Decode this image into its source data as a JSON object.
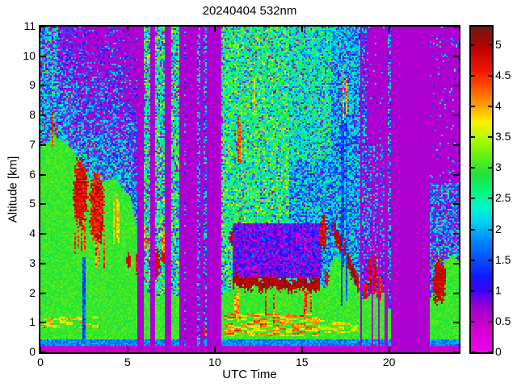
{
  "chart_data": {
    "type": "heatmap",
    "title": "20240404 532nm",
    "xlabel": "UTC Time",
    "ylabel": "Altitude [km]",
    "x_range": [
      0,
      24
    ],
    "y_range": [
      0,
      11
    ],
    "x_ticks": [
      0,
      5,
      10,
      15,
      20
    ],
    "y_ticks": [
      0,
      1,
      2,
      3,
      4,
      5,
      6,
      7,
      8,
      9,
      10,
      11
    ],
    "colorbar": {
      "min": 0,
      "max": 5.3,
      "ticks": [
        0,
        0.5,
        1,
        1.5,
        2,
        2.5,
        3,
        3.5,
        4,
        4.5,
        5
      ]
    },
    "colormap_stops": [
      [
        0.0,
        [
          240,
          0,
          240
        ]
      ],
      [
        0.45,
        [
          205,
          0,
          205
        ]
      ],
      [
        0.75,
        [
          150,
          0,
          210
        ]
      ],
      [
        1.0,
        [
          60,
          0,
          250
        ]
      ],
      [
        1.25,
        [
          15,
          30,
          255
        ]
      ],
      [
        1.8,
        [
          0,
          130,
          255
        ]
      ],
      [
        2.1,
        [
          0,
          205,
          245
        ]
      ],
      [
        2.35,
        [
          0,
          245,
          205
        ]
      ],
      [
        2.6,
        [
          0,
          250,
          130
        ]
      ],
      [
        2.9,
        [
          35,
          225,
          55
        ]
      ],
      [
        3.2,
        [
          100,
          240,
          20
        ]
      ],
      [
        3.5,
        [
          185,
          250,
          0
        ]
      ],
      [
        3.75,
        [
          250,
          240,
          0
        ]
      ],
      [
        4.0,
        [
          255,
          165,
          0
        ]
      ],
      [
        4.3,
        [
          255,
          85,
          0
        ]
      ],
      [
        4.6,
        [
          238,
          20,
          0
        ]
      ],
      [
        4.95,
        [
          190,
          0,
          0
        ]
      ],
      [
        5.3,
        [
          105,
          25,
          20
        ]
      ]
    ],
    "no_data_value": 0.62,
    "green_value": 3.0,
    "grid_cells": {
      "cols": 259,
      "rows": 202
    },
    "surface_bands": [
      {
        "top": 0.24,
        "v": 0.5,
        "jit": 0.15
      },
      {
        "top": 0.46,
        "v": 1.8,
        "jit": 0.55
      }
    ],
    "aerosol_top_km": [
      [
        0,
        6.9
      ],
      [
        0.8,
        7.3
      ],
      [
        1.6,
        7.0
      ],
      [
        2.3,
        6.5
      ],
      [
        3.1,
        5.6
      ],
      [
        4.2,
        5.9
      ],
      [
        5.1,
        5.3
      ],
      [
        5.5,
        4.4
      ],
      [
        5.9,
        2.1
      ],
      [
        6.6,
        1.9
      ],
      [
        10.5,
        1.9
      ],
      [
        11.0,
        2.15
      ],
      [
        16.4,
        2.2
      ],
      [
        16.8,
        3.3
      ],
      [
        17.5,
        3.0
      ],
      [
        18.3,
        2.0
      ],
      [
        18.6,
        1.8
      ],
      [
        19.2,
        2.05
      ],
      [
        19.7,
        2.0
      ],
      [
        20.0,
        1.5
      ],
      [
        22.35,
        1.8
      ],
      [
        23.2,
        3.1
      ],
      [
        23.7,
        3.3
      ],
      [
        24,
        3.05
      ]
    ],
    "noise_zones": [
      {
        "t": [
          0,
          1.05
        ],
        "a": [
          5.5,
          11
        ],
        "p": 0.8,
        "m": 2.05,
        "s": 0.75
      },
      {
        "t": [
          0,
          5.55
        ],
        "fade": true,
        "p": 0.85,
        "pk": 0.13,
        "pmin": 0.15,
        "m": 2.05,
        "mk": 0.13,
        "mmin": 1.2,
        "s": 0.7
      },
      {
        "t": [
          5.55,
          10.45
        ],
        "p": 0.85,
        "m": 2.55,
        "s": 0.95
      },
      {
        "t": [
          10.45,
          14.3
        ],
        "p": 0.96,
        "m": 2.65,
        "s": 0.9
      },
      {
        "t": [
          14.3,
          16.65
        ],
        "a": [
          0,
          6.5
        ],
        "p": 0.95,
        "m": 2.0,
        "s": 0.8
      },
      {
        "t": [
          14.3,
          16.65
        ],
        "a": [
          6.5,
          11
        ],
        "p": 0.95,
        "m": 2.4,
        "s": 0.8
      },
      {
        "t": [
          16.65,
          18.35
        ],
        "p": 0.92,
        "m": 1.95,
        "s": 0.75
      },
      {
        "t": [
          18.35,
          19.75
        ],
        "a": [
          0,
          7
        ],
        "p": 0.45,
        "m": 1.8,
        "s": 0.7
      },
      {
        "t": [
          22.35,
          24
        ],
        "a": [
          0,
          5.7
        ],
        "p": 0.65,
        "m": 1.9,
        "s": 0.7
      },
      {
        "t": [
          18.35,
          24
        ],
        "p": 0.06,
        "m": 1.8,
        "s": 0.8
      }
    ],
    "features": [
      {
        "type": "wisps",
        "t": [
          0.2,
          3.4
        ],
        "a": [
          0.8,
          1.2
        ],
        "v": 3.45,
        "th": 0.5,
        "seed": 11
      },
      {
        "type": "wisps",
        "t": [
          10.6,
          16.0
        ],
        "a": [
          0.55,
          1.3
        ],
        "v": 3.5,
        "th": 0.38,
        "seed": 12
      },
      {
        "type": "wisps",
        "t": [
          16.0,
          18.3
        ],
        "a": [
          0.6,
          1.1
        ],
        "v": 3.3,
        "th": 0.58,
        "seed": 13
      },
      {
        "type": "vstreaks",
        "t": [
          0.55,
          1.0
        ],
        "a": [
          6.9,
          8.3
        ],
        "v": 4.5,
        "p": 0.5,
        "jit": 0.8,
        "seed": 21
      },
      {
        "type": "blob",
        "t": [
          1.85,
          2.75
        ],
        "a": [
          4.1,
          6.7
        ],
        "v": 4.75,
        "jit": 0.7,
        "seed": 22
      },
      {
        "type": "vstreaks",
        "t": [
          1.9,
          2.7
        ],
        "a": [
          3.2,
          4.5
        ],
        "v": 4.4,
        "p": 0.4,
        "jit": 0.9,
        "seed": 23
      },
      {
        "type": "blob",
        "t": [
          2.8,
          3.7
        ],
        "a": [
          3.5,
          6.2
        ],
        "v": 4.7,
        "jit": 0.8,
        "seed": 24
      },
      {
        "type": "vstreaks",
        "t": [
          2.85,
          3.8
        ],
        "a": [
          2.6,
          4.0
        ],
        "v": 4.3,
        "p": 0.35,
        "jit": 1.0,
        "seed": 25
      },
      {
        "type": "vstreaks",
        "t": [
          4.15,
          4.55
        ],
        "a": [
          3.4,
          5.6
        ],
        "v": 3.8,
        "p": 0.5,
        "jit": 0.7,
        "seed": 26
      },
      {
        "type": "solid",
        "t": [
          2.38,
          2.6
        ],
        "a": [
          0.46,
          3.2
        ],
        "v": 1.5,
        "jit": 0.8,
        "seed": 27
      },
      {
        "type": "blob",
        "t": [
          4.9,
          5.2
        ],
        "a": [
          2.8,
          3.4
        ],
        "v": 4.8,
        "jit": 0.5,
        "seed": 31
      },
      {
        "type": "blob",
        "t": [
          5.45,
          5.75
        ],
        "a": [
          2.5,
          3.5
        ],
        "v": 4.6,
        "jit": 0.6,
        "seed": 32
      },
      {
        "type": "blob",
        "t": [
          6.55,
          6.85
        ],
        "a": [
          2.5,
          3.6
        ],
        "v": 4.8,
        "jit": 0.5,
        "seed": 33
      },
      {
        "type": "blob",
        "t": [
          6.95,
          7.15
        ],
        "a": [
          2.9,
          3.6
        ],
        "v": 4.7,
        "jit": 0.5,
        "seed": 34
      },
      {
        "type": "vstreaks",
        "t": [
          5.95,
          7.12
        ],
        "a": [
          3.3,
          4.3
        ],
        "v": 4.2,
        "p": 0.3,
        "jit": 0.9,
        "seed": 35
      },
      {
        "type": "gap",
        "t": [
          5.55,
          5.95
        ]
      },
      {
        "type": "gap",
        "t": [
          6.3,
          6.55
        ]
      },
      {
        "type": "gap",
        "t": [
          7.15,
          7.5
        ]
      },
      {
        "type": "gap",
        "t": [
          7.95,
          8.45
        ]
      },
      {
        "type": "gap",
        "t": [
          8.45,
          10.42
        ]
      },
      {
        "type": "datacol",
        "t": [
          8.22,
          8.32
        ],
        "p": 0.3,
        "m": 1.7,
        "s": 0.7,
        "green": 0,
        "seed": 41
      },
      {
        "type": "datacol",
        "t": [
          9.0,
          9.15
        ],
        "p": 0.55,
        "m": 1.85,
        "s": 0.7,
        "green": 0.3,
        "seed": 42
      },
      {
        "type": "datacol",
        "t": [
          9.35,
          9.5
        ],
        "p": 0.5,
        "m": 1.9,
        "s": 0.7,
        "green": 0.35,
        "seed": 43
      },
      {
        "type": "blob",
        "t": [
          9.38,
          9.48
        ],
        "a": [
          0.45,
          0.95
        ],
        "v": 4.6,
        "jit": 0.5,
        "seed": 44
      },
      {
        "type": "vstreaks",
        "t": [
          11.3,
          11.6
        ],
        "a": [
          6.3,
          8.1
        ],
        "v": 4.3,
        "p": 0.55,
        "jit": 0.7,
        "seed": 51
      },
      {
        "type": "vstreaks",
        "t": [
          11.7,
          12.05
        ],
        "a": [
          6.6,
          9.7
        ],
        "v": 4.2,
        "p": 0.5,
        "jit": 0.8,
        "seed": 52
      },
      {
        "type": "vstreaks",
        "t": [
          12.05,
          12.3
        ],
        "a": [
          7.6,
          9.9
        ],
        "v": 3.8,
        "p": 0.4,
        "jit": 0.8,
        "seed": 53
      },
      {
        "type": "blob",
        "t": [
          10.85,
          11.2
        ],
        "a": [
          3.55,
          4.2
        ],
        "v": 4.9,
        "jit": 0.4,
        "seed": 54
      },
      {
        "type": "speckle",
        "t": [
          11.0,
          16.1
        ],
        "a": [
          2.5,
          4.35
        ],
        "p": 0.8,
        "m": 0.95,
        "s": 0.6,
        "seed": 55
      },
      {
        "type": "layer",
        "pts": [
          [
            11.0,
            2.4
          ],
          [
            12.5,
            2.33
          ],
          [
            14.0,
            2.25
          ],
          [
            16.05,
            2.3
          ]
        ],
        "h": 0.2,
        "v": 5.0,
        "jit": 0.45,
        "seed": 56
      },
      {
        "type": "vstreaks",
        "t": [
          11.1,
          11.5
        ],
        "a": [
          0.9,
          2.2
        ],
        "v": 4.0,
        "p": 0.5,
        "jit": 0.8,
        "seed": 57
      },
      {
        "type": "vstreaks",
        "t": [
          12.2,
          12.35
        ],
        "a": [
          1.0,
          2.3
        ],
        "v": 4.5,
        "p": 0.7,
        "jit": 1.1,
        "seed": 58
      },
      {
        "type": "vstreaks",
        "t": [
          12.8,
          12.95
        ],
        "a": [
          1.2,
          2.3
        ],
        "v": 4.5,
        "p": 0.7,
        "jit": 1.1,
        "seed": 59
      },
      {
        "type": "vstreaks",
        "t": [
          13.35,
          13.5
        ],
        "a": [
          0.8,
          2.25
        ],
        "v": 4.4,
        "p": 0.7,
        "jit": 1.2,
        "seed": 60
      },
      {
        "type": "vstreaks",
        "t": [
          14.5,
          14.72
        ],
        "a": [
          0.6,
          2.2
        ],
        "v": 4.6,
        "p": 0.75,
        "jit": 1.1,
        "seed": 61
      },
      {
        "type": "vstreaks",
        "t": [
          15.1,
          15.25
        ],
        "a": [
          1.1,
          2.2
        ],
        "v": 4.5,
        "p": 0.7,
        "jit": 1.1,
        "seed": 62
      },
      {
        "type": "vstreaks",
        "t": [
          15.45,
          15.6
        ],
        "a": [
          1.3,
          2.2
        ],
        "v": 4.4,
        "p": 0.7,
        "jit": 1.1,
        "seed": 63
      },
      {
        "type": "blob",
        "t": [
          16.05,
          16.45
        ],
        "a": [
          3.4,
          4.7
        ],
        "v": 4.8,
        "jit": 0.6,
        "seed": 64
      },
      {
        "type": "blob",
        "t": [
          16.3,
          16.55
        ],
        "a": [
          2.2,
          2.8
        ],
        "v": 4.7,
        "jit": 0.6,
        "seed": 65
      },
      {
        "type": "layer",
        "pts": [
          [
            16.75,
            4.25
          ],
          [
            17.3,
            3.7
          ],
          [
            17.8,
            2.9
          ],
          [
            18.3,
            2.2
          ]
        ],
        "h": 0.28,
        "v": 4.9,
        "jit": 0.5,
        "seed": 66
      },
      {
        "type": "vstreaks",
        "t": [
          17.28,
          17.42
        ],
        "a": [
          0.46,
          11
        ],
        "v": 1.5,
        "p": 0.85,
        "jit": 0.8,
        "seed": 67
      },
      {
        "type": "vstreaks",
        "t": [
          17.52,
          17.62
        ],
        "a": [
          0.46,
          11
        ],
        "v": 1.6,
        "p": 0.75,
        "jit": 0.8,
        "seed": 68
      },
      {
        "type": "vstreaks",
        "t": [
          17.35,
          17.62
        ],
        "a": [
          7.6,
          9.6
        ],
        "v": 4.1,
        "p": 0.5,
        "jit": 0.7,
        "seed": 69
      },
      {
        "type": "gap",
        "t": [
          18.32,
          18.45
        ]
      },
      {
        "type": "datacol",
        "t": [
          18.45,
          18.75
        ],
        "p": 0.45,
        "m": 1.8,
        "s": 0.7,
        "green": 1.8,
        "seed": 71
      },
      {
        "type": "blob",
        "t": [
          18.5,
          18.72
        ],
        "a": [
          1.75,
          2.4
        ],
        "v": 4.7,
        "jit": 0.5,
        "seed": 72
      },
      {
        "type": "blob",
        "t": [
          18.8,
          19.35
        ],
        "a": [
          1.9,
          3.4
        ],
        "v": 4.8,
        "jit": 0.6,
        "seed": 73
      },
      {
        "type": "blob",
        "t": [
          19.28,
          19.62
        ],
        "a": [
          1.7,
          2.6
        ],
        "v": 4.6,
        "jit": 0.6,
        "seed": 74
      },
      {
        "type": "gap",
        "t": [
          19.0,
          19.07
        ]
      },
      {
        "type": "gap",
        "t": [
          19.35,
          19.42
        ]
      },
      {
        "type": "gap",
        "t": [
          19.7,
          19.92
        ]
      },
      {
        "type": "datacol",
        "t": [
          19.92,
          20.15
        ],
        "p": 0.5,
        "m": 1.9,
        "s": 0.8,
        "green": 1.45,
        "seed": 75
      },
      {
        "type": "vstreaks",
        "t": [
          19.95,
          20.12
        ],
        "a": [
          1.4,
          2.35
        ],
        "v": 4.4,
        "p": 0.7,
        "jit": 0.9,
        "seed": 76
      },
      {
        "type": "gap",
        "t": [
          20.15,
          22.35
        ]
      },
      {
        "type": "blob",
        "t": [
          22.45,
          23.3
        ],
        "a": [
          1.6,
          3.2
        ],
        "v": 4.85,
        "jit": 0.5,
        "seed": 81
      }
    ]
  }
}
